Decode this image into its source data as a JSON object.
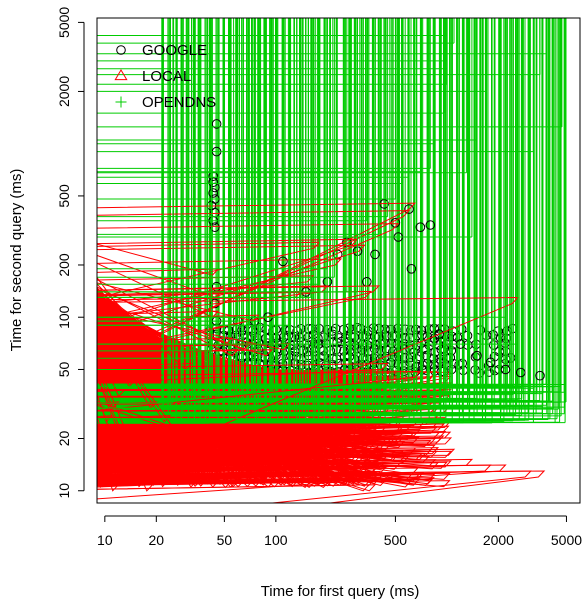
{
  "chart_data": {
    "type": "scatter",
    "title": "",
    "xlabel": "Time for first query (ms)",
    "ylabel": "Time for second query (ms)",
    "x_scale": "log",
    "y_scale": "log",
    "xlim": [
      9,
      6000
    ],
    "ylim": [
      8.5,
      5300
    ],
    "grid": false,
    "legend_position": "top-left",
    "x_ticks": [
      10,
      20,
      50,
      100,
      500,
      2000,
      5000
    ],
    "x_tick_labels": [
      "10",
      "20",
      "50",
      "100",
      "500",
      "2000",
      "5000"
    ],
    "y_ticks": [
      10,
      20,
      50,
      100,
      200,
      500,
      2000,
      5000
    ],
    "y_tick_labels": [
      "10",
      "20",
      "50",
      "100",
      "200",
      "500",
      "2000",
      "5000"
    ],
    "series": [
      {
        "name": "GOOGLE",
        "marker": "circle",
        "color": "#000000",
        "points": [
          [
            45,
            1300
          ],
          [
            45,
            900
          ],
          [
            43,
            650
          ],
          [
            43,
            600
          ],
          [
            44,
            560
          ],
          [
            43,
            520
          ],
          [
            44,
            480
          ],
          [
            42,
            440
          ],
          [
            44,
            400
          ],
          [
            43,
            360
          ],
          [
            44,
            330
          ],
          [
            45,
            150
          ],
          [
            44,
            120
          ],
          [
            45,
            95
          ],
          [
            60,
            95
          ],
          [
            75,
            95
          ],
          [
            90,
            100
          ],
          [
            110,
            210
          ],
          [
            150,
            140
          ],
          [
            200,
            160
          ],
          [
            230,
            230
          ],
          [
            260,
            270
          ],
          [
            300,
            240
          ],
          [
            340,
            160
          ],
          [
            380,
            230
          ],
          [
            430,
            450
          ],
          [
            500,
            350
          ],
          [
            520,
            290
          ],
          [
            600,
            420
          ],
          [
            620,
            190
          ],
          [
            700,
            330
          ],
          [
            800,
            340
          ],
          [
            900,
            80
          ],
          [
            1200,
            70
          ],
          [
            1500,
            60
          ],
          [
            1800,
            55
          ],
          [
            2200,
            50
          ],
          [
            2700,
            48
          ],
          [
            3500,
            46
          ]
        ]
      },
      {
        "name": "LOCAL",
        "marker": "triangle",
        "color": "#ff0000",
        "points": [
          [
            11,
            12
          ],
          [
            12,
            14
          ],
          [
            13,
            16
          ],
          [
            14,
            18
          ],
          [
            15,
            20
          ],
          [
            11,
            25
          ],
          [
            12,
            30
          ],
          [
            13,
            35
          ],
          [
            15,
            40
          ],
          [
            18,
            45
          ],
          [
            20,
            30
          ],
          [
            24,
            25
          ],
          [
            28,
            22
          ],
          [
            18,
            75
          ],
          [
            32,
            50
          ],
          [
            46,
            175
          ],
          [
            46,
            100
          ],
          [
            48,
            130
          ],
          [
            55,
            70
          ],
          [
            60,
            60
          ],
          [
            70,
            65
          ],
          [
            80,
            95
          ],
          [
            95,
            60
          ],
          [
            120,
            65
          ],
          [
            140,
            130
          ],
          [
            165,
            160
          ],
          [
            180,
            250
          ],
          [
            200,
            140
          ],
          [
            240,
            200
          ],
          [
            300,
            260
          ],
          [
            330,
            240
          ],
          [
            360,
            130
          ],
          [
            400,
            140
          ],
          [
            450,
            50
          ],
          [
            520,
            320
          ],
          [
            600,
            380
          ],
          [
            650,
            420
          ],
          [
            700,
            45
          ],
          [
            800,
            18
          ],
          [
            900,
            20
          ],
          [
            1100,
            16
          ],
          [
            1400,
            14
          ],
          [
            1800,
            13
          ],
          [
            2200,
            13
          ],
          [
            2600,
            120
          ],
          [
            3100,
            12
          ],
          [
            3700,
            12
          ],
          [
            350,
            10
          ],
          [
            380,
            10
          ],
          [
            19,
            10
          ],
          [
            12,
            10
          ]
        ]
      },
      {
        "name": "OPENDNS",
        "marker": "plus",
        "color": "#00cc00",
        "points": [
          [
            22,
            30
          ],
          [
            25,
            32
          ],
          [
            28,
            40
          ],
          [
            33,
            58
          ],
          [
            40,
            50
          ],
          [
            42,
            64
          ],
          [
            50,
            70
          ],
          [
            60,
            95
          ],
          [
            70,
            90
          ],
          [
            80,
            95
          ],
          [
            100,
            100
          ],
          [
            120,
            90
          ],
          [
            140,
            130
          ],
          [
            160,
            130
          ],
          [
            180,
            155
          ],
          [
            200,
            190
          ],
          [
            220,
            170
          ],
          [
            260,
            140
          ],
          [
            300,
            140
          ],
          [
            340,
            360
          ],
          [
            400,
            300
          ],
          [
            450,
            380
          ],
          [
            500,
            480
          ],
          [
            550,
            590
          ],
          [
            600,
            640
          ],
          [
            700,
            690
          ],
          [
            800,
            720
          ],
          [
            850,
            1000
          ],
          [
            960,
            1500
          ],
          [
            1000,
            2200
          ],
          [
            1000,
            2700
          ],
          [
            1000,
            3000
          ],
          [
            1000,
            4200
          ],
          [
            1100,
            3800
          ],
          [
            1300,
            680
          ],
          [
            1400,
            290
          ],
          [
            1500,
            1050
          ],
          [
            1700,
            2000
          ],
          [
            2200,
            100
          ],
          [
            2600,
            70
          ],
          [
            3200,
            900
          ],
          [
            3500,
            2500
          ],
          [
            3800,
            3300
          ],
          [
            4700,
            1250
          ],
          [
            4400,
            26
          ],
          [
            4000,
            26
          ]
        ]
      }
    ],
    "clusters": [
      {
        "series": "GOOGLE",
        "x_range": [
          42,
          2400
        ],
        "y_range": [
          45,
          85
        ]
      },
      {
        "series": "LOCAL",
        "x_range": [
          10,
          1100
        ],
        "y_range": [
          10,
          45
        ]
      },
      {
        "series": "OPENDNS",
        "x_range": [
          22,
          5000
        ],
        "y_range": [
          23,
          40
        ]
      }
    ]
  }
}
